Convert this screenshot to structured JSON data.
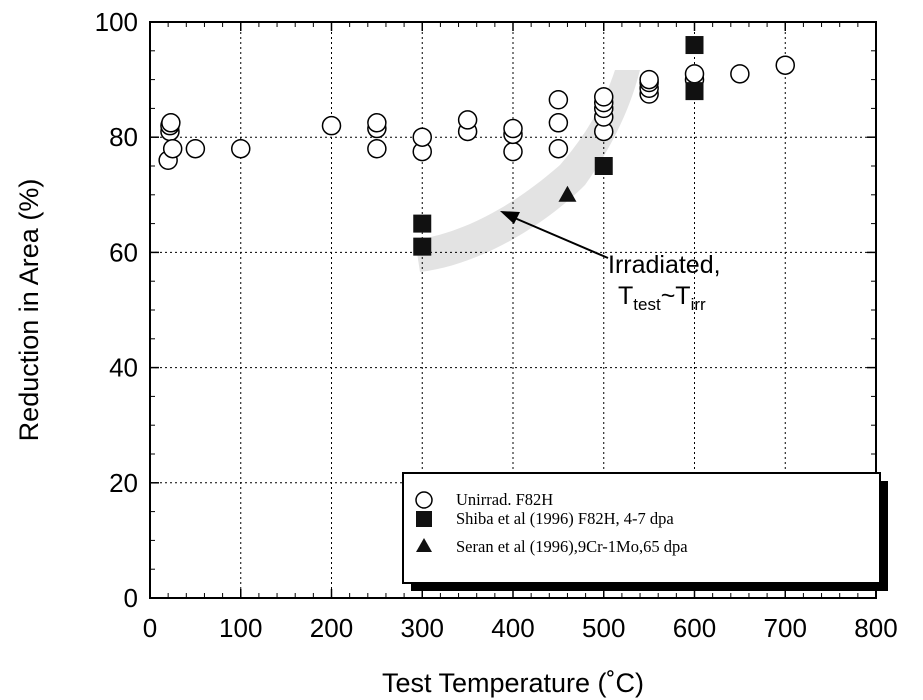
{
  "chart_data": {
    "type": "scatter",
    "xlabel": "Test Temperature (˚C)",
    "ylabel": "Reduction in Area (%)",
    "xlim": [
      0,
      800
    ],
    "ylim": [
      0,
      100
    ],
    "x_ticks": [
      "0",
      "100",
      "200",
      "300",
      "400",
      "500",
      "600",
      "700",
      "800"
    ],
    "y_ticks": [
      "0",
      "20",
      "40",
      "60",
      "80",
      "100"
    ],
    "grid": true,
    "legend_position": "bottom-right",
    "series": [
      {
        "name": "Unirrad. F82H",
        "marker": "open-circle",
        "points": [
          [
            20,
            76
          ],
          [
            22,
            81
          ],
          [
            22,
            82
          ],
          [
            23,
            82.5
          ],
          [
            25,
            78
          ],
          [
            50,
            78
          ],
          [
            100,
            78
          ],
          [
            200,
            82
          ],
          [
            250,
            78
          ],
          [
            250,
            81.5
          ],
          [
            250,
            82.5
          ],
          [
            300,
            77.5
          ],
          [
            300,
            80
          ],
          [
            350,
            81
          ],
          [
            350,
            83
          ],
          [
            400,
            77.5
          ],
          [
            400,
            80.5
          ],
          [
            400,
            81.5
          ],
          [
            450,
            78
          ],
          [
            450,
            82.5
          ],
          [
            450,
            86.5
          ],
          [
            500,
            81
          ],
          [
            500,
            83.5
          ],
          [
            500,
            85
          ],
          [
            500,
            86
          ],
          [
            500,
            87
          ],
          [
            550,
            87.5
          ],
          [
            550,
            88.5
          ],
          [
            550,
            89.5
          ],
          [
            550,
            90
          ],
          [
            600,
            90
          ],
          [
            600,
            91
          ],
          [
            650,
            91
          ],
          [
            700,
            92.5
          ]
        ]
      },
      {
        "name": "Shiba et al (1996) F82H, 4-7 dpa",
        "marker": "filled-square",
        "points": [
          [
            300,
            61
          ],
          [
            300,
            65
          ],
          [
            500,
            75
          ],
          [
            600,
            88
          ],
          [
            600,
            96
          ]
        ]
      },
      {
        "name": "Seran et al (1996),9Cr-1Mo,65 dpa",
        "marker": "filled-triangle",
        "points": [
          [
            460,
            70
          ]
        ]
      }
    ],
    "annotation": {
      "text_line1": "Irradiated,",
      "text_main": "T",
      "sub1": "test",
      "tilde": "~T",
      "sub2": "irr"
    }
  }
}
